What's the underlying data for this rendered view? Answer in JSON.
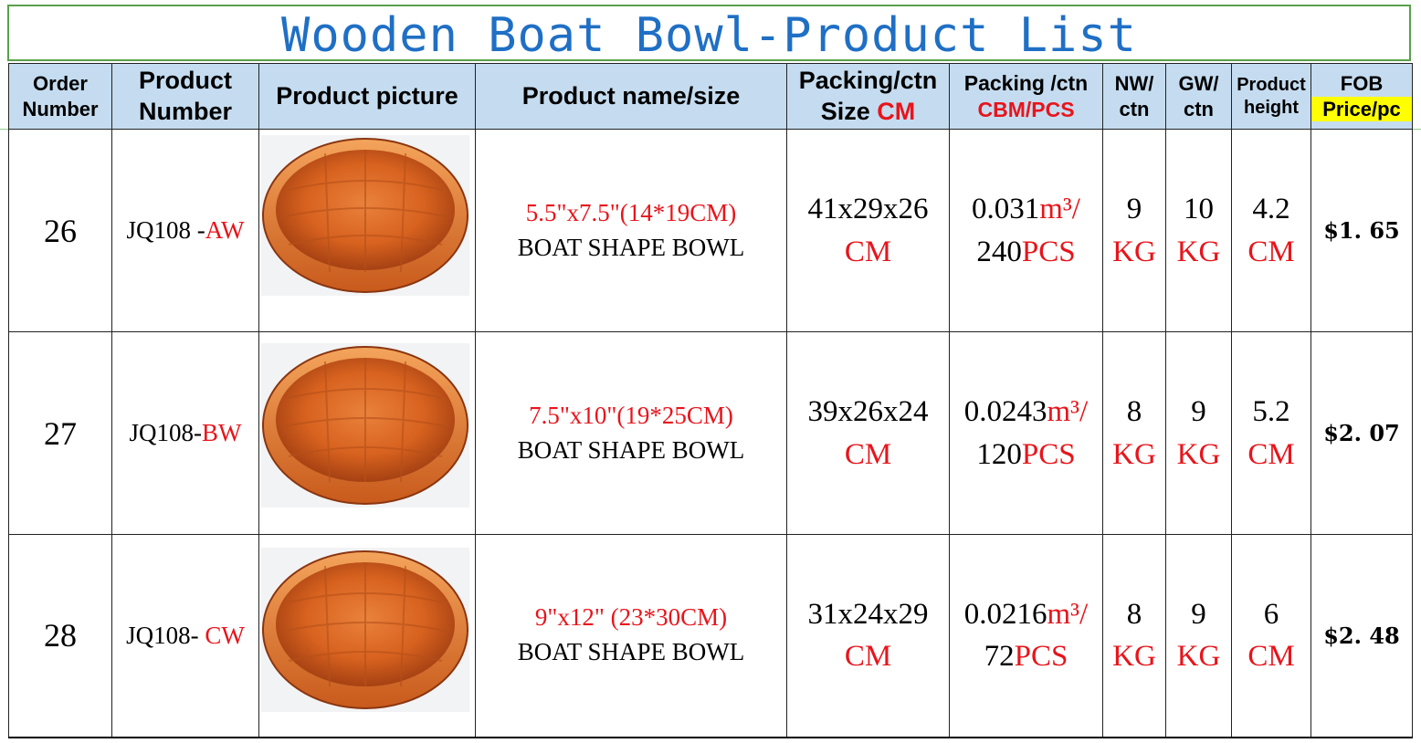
{
  "title": "Wooden Boat Bowl-Product List",
  "headers": {
    "order": [
      "Order",
      "Number"
    ],
    "product_number": [
      "Product",
      "Number"
    ],
    "picture": "Product picture",
    "name": "Product name/size",
    "packing_size": [
      "Packing/ctn",
      "Size ",
      "CM"
    ],
    "packing_cbm": [
      "Packing /ctn",
      "CBM/PCS"
    ],
    "nw": [
      "NW/",
      "ctn"
    ],
    "gw": [
      "GW/",
      "ctn"
    ],
    "height": [
      "Product",
      "height"
    ],
    "fob": [
      "FOB",
      "Price/pc"
    ]
  },
  "rows": [
    {
      "order": "26",
      "pn_base": "JQ108 -",
      "pn_suffix": "AW",
      "size": "5.5\"x7.5\"(14*19CM)",
      "desc": "BOAT SHAPE BOWL",
      "dims": "41x29x26",
      "dims_unit": "CM",
      "cbm": "0.031",
      "cbm_unit": "m³/",
      "pcs": "240",
      "pcs_unit": "PCS",
      "nw": "9",
      "nw_unit": "KG",
      "gw": "10",
      "gw_unit": "KG",
      "height": "4.2",
      "height_unit": "CM",
      "price": "$1. 65"
    },
    {
      "order": "27",
      "pn_base": "JQ108-",
      "pn_suffix": "BW",
      "size": "7.5\"x10\"(19*25CM)",
      "desc": "BOAT SHAPE BOWL",
      "dims": "39x26x24",
      "dims_unit": "CM",
      "cbm": "0.0243",
      "cbm_unit": "m³/",
      "pcs": "120",
      "pcs_unit": "PCS",
      "nw": "8",
      "nw_unit": "KG",
      "gw": "9",
      "gw_unit": "KG",
      "height": "5.2",
      "height_unit": "CM",
      "price": "$2. 07"
    },
    {
      "order": "28",
      "pn_base": "JQ108- ",
      "pn_suffix": "CW",
      "size": "9\"x12\" (23*30CM)",
      "desc": "BOAT SHAPE BOWL",
      "dims": "31x24x29",
      "dims_unit": "CM",
      "cbm": "0.0216",
      "cbm_unit": "m³/",
      "pcs": "72",
      "pcs_unit": "PCS",
      "nw": "8",
      "nw_unit": "KG",
      "gw": "9",
      "gw_unit": "KG",
      "height": "6",
      "height_unit": "CM",
      "price": "$2. 48"
    }
  ],
  "colors": {
    "title": "#1f6fc5",
    "header_bg": "#c5dcf0",
    "accent_red": "#e8141b",
    "highlight": "#ffff00",
    "frame_green": "#5aa04a"
  }
}
